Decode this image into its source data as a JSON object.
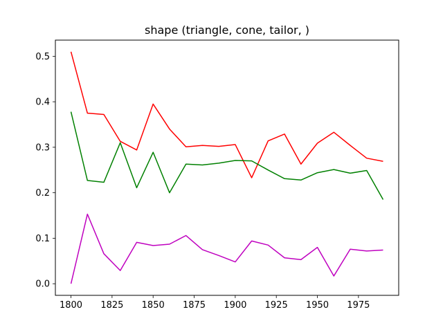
{
  "chart_data": {
    "type": "line",
    "title": "shape (triangle, cone, tailor, )",
    "xlabel": "",
    "ylabel": "",
    "xlim": [
      1790.5,
      1999.5
    ],
    "ylim": [
      -0.0255,
      0.5355
    ],
    "grid": false,
    "x_ticks": [
      1800,
      1825,
      1850,
      1875,
      1900,
      1925,
      1950,
      1975
    ],
    "y_ticks": [
      0.0,
      0.1,
      0.2,
      0.3,
      0.4,
      0.5
    ],
    "x_tick_labels": [
      "1800",
      "1825",
      "1850",
      "1875",
      "1900",
      "1925",
      "1950",
      "1975"
    ],
    "y_tick_labels": [
      "0.0",
      "0.1",
      "0.2",
      "0.3",
      "0.4",
      "0.5"
    ],
    "x": [
      1800,
      1810,
      1820,
      1830,
      1840,
      1850,
      1860,
      1870,
      1880,
      1890,
      1900,
      1910,
      1920,
      1930,
      1940,
      1950,
      1960,
      1970,
      1980,
      1990
    ],
    "series": [
      {
        "color": "#ff0000",
        "values": [
          0.51,
          0.375,
          0.372,
          0.313,
          0.294,
          0.395,
          0.34,
          0.301,
          0.304,
          0.302,
          0.306,
          0.233,
          0.314,
          0.329,
          0.263,
          0.309,
          0.333,
          0.304,
          0.276,
          0.269
        ]
      },
      {
        "color": "#008000",
        "values": [
          0.378,
          0.227,
          0.223,
          0.31,
          0.211,
          0.289,
          0.2,
          0.263,
          0.261,
          0.265,
          0.271,
          0.27,
          0.25,
          0.231,
          0.228,
          0.244,
          0.251,
          0.243,
          0.249,
          0.185
        ]
      },
      {
        "color": "#bf00bf",
        "values": [
          0.0,
          0.153,
          0.066,
          0.029,
          0.091,
          0.084,
          0.087,
          0.106,
          0.075,
          0.062,
          0.048,
          0.094,
          0.085,
          0.057,
          0.053,
          0.08,
          0.017,
          0.076,
          0.072,
          0.074
        ]
      }
    ]
  }
}
